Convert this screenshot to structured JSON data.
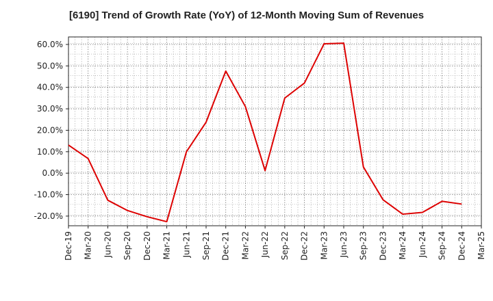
{
  "chart_data": {
    "type": "line",
    "title": "[6190]  Trend of Growth Rate (YoY) of 12-Month Moving Sum of Revenues",
    "xlabel": "",
    "ylabel": "",
    "ylim": [
      -24.5,
      63.5
    ],
    "y_ticks": [
      "-20.0%",
      "-10.0%",
      "0.0%",
      "10.0%",
      "20.0%",
      "30.0%",
      "40.0%",
      "50.0%",
      "60.0%"
    ],
    "x_ticks": [
      "Dec-19",
      "Mar-20",
      "Jun-20",
      "Sep-20",
      "Dec-20",
      "Mar-21",
      "Jun-21",
      "Sep-21",
      "Dec-21",
      "Mar-22",
      "Jun-22",
      "Sep-22",
      "Dec-22",
      "Mar-23",
      "Jun-23",
      "Sep-23",
      "Dec-23",
      "Mar-24",
      "Jun-24",
      "Sep-24",
      "Dec-24",
      "Mar-25"
    ],
    "grid": true,
    "line_color": "#dd0000",
    "series": [
      {
        "x": [
          "Dec-19",
          "Mar-20",
          "Jun-20",
          "Sep-20",
          "Dec-20",
          "Mar-21",
          "Jun-21",
          "Sep-21",
          "Dec-21",
          "Mar-22",
          "Jun-22",
          "Sep-22",
          "Dec-22",
          "Mar-23",
          "Jun-23",
          "Sep-23",
          "Dec-23",
          "Mar-24",
          "Jun-24",
          "Sep-24",
          "Dec-24"
        ],
        "values": [
          13.1,
          6.8,
          -12.6,
          -17.4,
          -20.3,
          -22.6,
          10.0,
          23.8,
          47.6,
          31.0,
          1.2,
          35.0,
          42.0,
          60.3,
          60.6,
          2.9,
          -12.4,
          -19.1,
          -18.3,
          -13.1,
          -14.4
        ]
      }
    ]
  }
}
